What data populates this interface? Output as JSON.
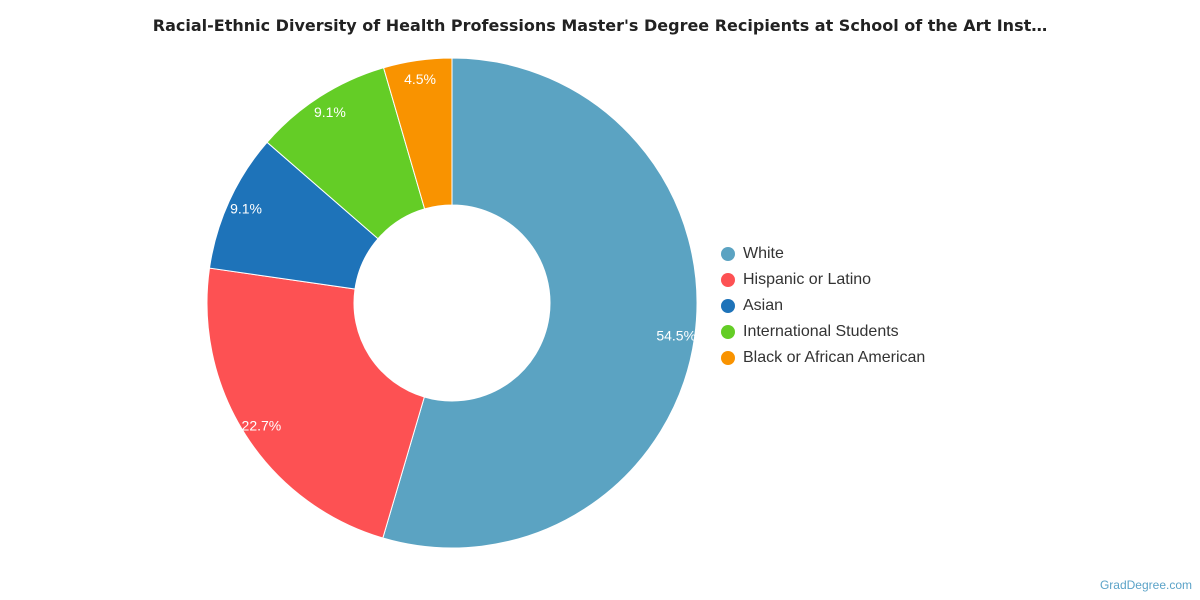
{
  "chart_data": {
    "type": "pie",
    "donut": true,
    "title": "Racial-Ethnic Diversity of Health Professions Master's Degree Recipients at School of the Art Inst…",
    "categories": [
      "White",
      "Hispanic or Latino",
      "Asian",
      "International Students",
      "Black or African American"
    ],
    "values": [
      54.5,
      22.7,
      9.1,
      9.1,
      4.5
    ],
    "value_labels": [
      "54.5%",
      "22.7%",
      "9.1%",
      "9.1%",
      "4.5%"
    ],
    "colors": [
      "#5ba3c2",
      "#fd5153",
      "#1e73b9",
      "#64cd26",
      "#f99300"
    ],
    "legend_position": "right"
  },
  "credit": "GradDegree.com"
}
